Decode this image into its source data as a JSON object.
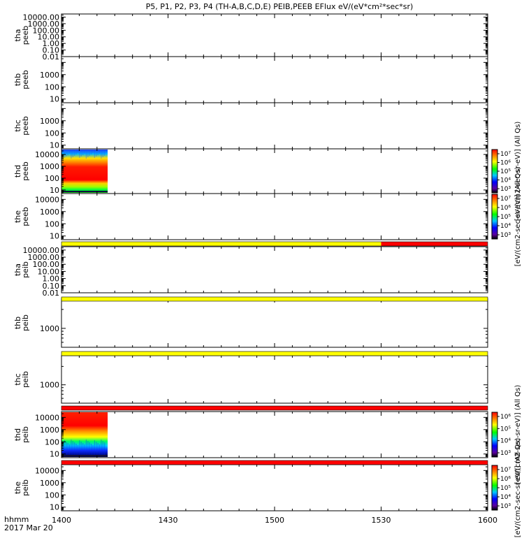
{
  "title": "P5, P1, P2, P3, P4 (TH-A,B,C,D,E) PEIB,PEEB EFlux eV/(eV*cm²*sec*sr)",
  "colors": {
    "flag_yellow": "#ffff00",
    "flag_red": "#ff0000",
    "frame": "#000000"
  },
  "chart_data": {
    "type": "heatmap",
    "time_axis": {
      "date": "2017 Mar 20",
      "unit_label": "hhmm",
      "ticks": [
        "1400",
        "1430",
        "1500",
        "1530",
        "1600"
      ],
      "range": [
        "1400",
        "1600"
      ]
    },
    "panels": [
      {
        "id": "tha-peeb",
        "ylabel": [
          "tha",
          "peeb"
        ],
        "ytick_labels": [
          "10000.00",
          "1000.00",
          "100.00",
          "10.00",
          "1.00",
          "0.10",
          "0.01"
        ],
        "yscale": "log",
        "ylim": [
          0.01,
          30000
        ],
        "data": "none"
      },
      {
        "id": "thb-peeb",
        "ylabel": [
          "thb",
          "peeb"
        ],
        "ytick_labels": [
          "1000",
          "100",
          "10"
        ],
        "yscale": "log",
        "ylim": [
          5,
          30000
        ],
        "data": "none"
      },
      {
        "id": "thc-peeb",
        "ylabel": [
          "thc",
          "peeb"
        ],
        "ytick_labels": [
          "1000",
          "100",
          "10"
        ],
        "yscale": "log",
        "ylim": [
          5,
          30000
        ],
        "data": "none"
      },
      {
        "id": "thd-peeb",
        "ylabel": [
          "thd",
          "peeb"
        ],
        "ytick_labels": [
          "10000",
          "1000",
          "100",
          "10"
        ],
        "yscale": "log",
        "ylim": [
          5,
          30000
        ],
        "data_time_range": [
          "1400",
          "1413"
        ],
        "colorbar": {
          "label": "[eV/(cm2-sec-sr-eV)] (All Qs)",
          "ticks": [
            "10⁷",
            "10⁶",
            "10⁵",
            "10⁴",
            "10³"
          ]
        }
      },
      {
        "id": "the-peeb",
        "ylabel": [
          "the",
          "peeb"
        ],
        "ytick_labels": [
          "10000",
          "1000",
          "100",
          "10"
        ],
        "yscale": "log",
        "ylim": [
          5,
          30000
        ],
        "data": "none",
        "colorbar": {
          "label": "[eV/(cm2-sec-sr-eV)] (All Qs)",
          "ticks": [
            "10⁷",
            "10⁶",
            "10⁵",
            "10⁴",
            "10³"
          ]
        }
      },
      {
        "id": "tha-peib",
        "ylabel": [
          "tha",
          "peib"
        ],
        "ytick_labels": [
          "10000.00",
          "1000.00",
          "100.00",
          "10.00",
          "1.00",
          "0.10",
          "0.01"
        ],
        "yscale": "log",
        "ylim": [
          0.01,
          30000
        ],
        "data": "none"
      },
      {
        "id": "thb-peib",
        "ylabel": [
          "thb",
          "peib"
        ],
        "ytick_labels": [
          "1000"
        ],
        "yscale": "log",
        "ylim": [
          500,
          3000
        ],
        "data": "none"
      },
      {
        "id": "thc-peib",
        "ylabel": [
          "thc",
          "peib"
        ],
        "ytick_labels": [
          "1000"
        ],
        "yscale": "log",
        "ylim": [
          500,
          3000
        ],
        "data": "none"
      },
      {
        "id": "thd-peib",
        "ylabel": [
          "thd",
          "peib"
        ],
        "ytick_labels": [
          "10000",
          "1000",
          "100",
          "10"
        ],
        "yscale": "log",
        "ylim": [
          5,
          30000
        ],
        "data_time_range": [
          "1400",
          "1413"
        ],
        "colorbar": {
          "label": "[eV/(cm2-sec-sr-eV)] (All Qs)",
          "ticks": [
            "10⁶",
            "10⁵",
            "10⁴",
            "10³"
          ]
        }
      },
      {
        "id": "the-peib",
        "ylabel": [
          "the",
          "peib"
        ],
        "ytick_labels": [
          "10000",
          "1000",
          "100",
          "10"
        ],
        "yscale": "log",
        "ylim": [
          5,
          30000
        ],
        "data": "none",
        "colorbar": {
          "label": "[eV/(cm2-sec-sr-eV)] (All Qs)",
          "ticks": [
            "10⁷",
            "10⁶",
            "10⁵",
            "10⁴",
            "10³"
          ]
        }
      }
    ],
    "flag_bars": [
      {
        "after_panel": "the-peeb",
        "segments": [
          {
            "from": "1400",
            "to": "1530",
            "color": "yellow"
          },
          {
            "from": "1530",
            "to": "1600",
            "color": "red"
          }
        ]
      },
      {
        "after_panel": "tha-peib",
        "segments": [
          {
            "from": "1400",
            "to": "1600",
            "color": "yellow"
          }
        ]
      },
      {
        "after_panel": "thb-peib",
        "segments": [
          {
            "from": "1400",
            "to": "1600",
            "color": "yellow"
          }
        ]
      },
      {
        "after_panel": "thc-peib",
        "segments": [
          {
            "from": "1400",
            "to": "1600",
            "color": "red"
          }
        ]
      },
      {
        "after_panel": "thd-peib",
        "segments": [
          {
            "from": "1400",
            "to": "1600",
            "color": "red"
          }
        ]
      }
    ]
  }
}
